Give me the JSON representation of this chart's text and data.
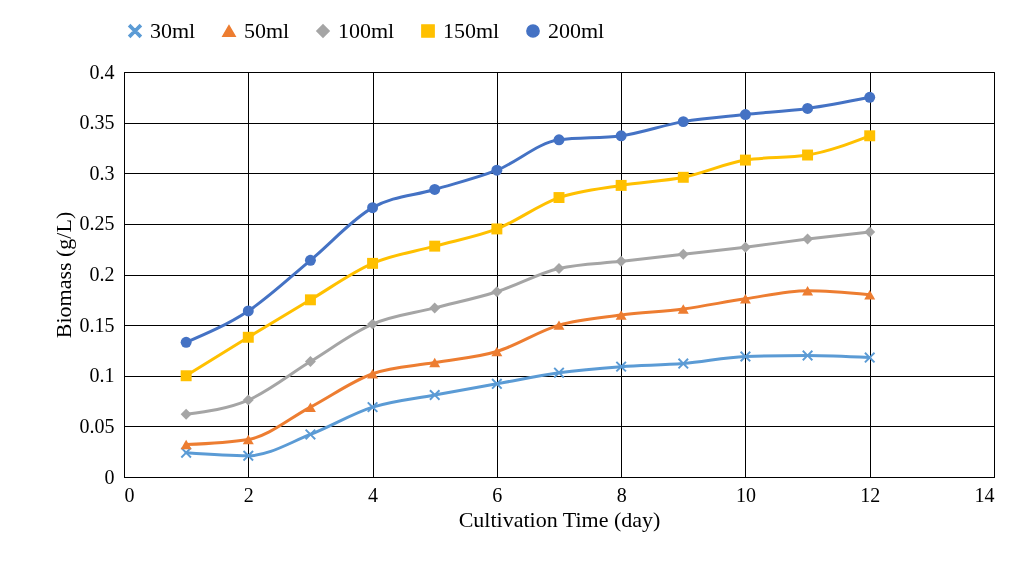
{
  "chart_data": {
    "type": "line",
    "xlabel": "Cultivation Time (day)",
    "ylabel": "Biomass (g/L)",
    "x": [
      1,
      2,
      3,
      4,
      5,
      6,
      7,
      8,
      9,
      10,
      11,
      12
    ],
    "xlim": [
      0,
      14
    ],
    "xticks": [
      0,
      2,
      4,
      6,
      8,
      10,
      12,
      14
    ],
    "ylim": [
      0,
      0.4
    ],
    "yticks": [
      0,
      0.05,
      0.1,
      0.15,
      0.2,
      0.25,
      0.3,
      0.35,
      0.4
    ],
    "grid": true,
    "legend": "top",
    "series": [
      {
        "name": "30ml",
        "color": "#5b9bd5",
        "marker": "cross",
        "values": [
          0.024,
          0.021,
          0.042,
          0.069,
          0.081,
          0.092,
          0.103,
          0.109,
          0.112,
          0.119,
          0.12,
          0.118
        ]
      },
      {
        "name": "50ml",
        "color": "#ed7d31",
        "marker": "triangle",
        "values": [
          0.032,
          0.037,
          0.069,
          0.102,
          0.113,
          0.124,
          0.15,
          0.16,
          0.166,
          0.176,
          0.184,
          0.18
        ]
      },
      {
        "name": "100ml",
        "color": "#a5a5a5",
        "marker": "diamond",
        "values": [
          0.062,
          0.076,
          0.114,
          0.151,
          0.167,
          0.183,
          0.206,
          0.213,
          0.22,
          0.227,
          0.235,
          0.242
        ]
      },
      {
        "name": "150ml",
        "color": "#ffc000",
        "marker": "square",
        "values": [
          0.1,
          0.138,
          0.175,
          0.211,
          0.228,
          0.245,
          0.276,
          0.288,
          0.296,
          0.313,
          0.318,
          0.337
        ]
      },
      {
        "name": "200ml",
        "color": "#4472c4",
        "marker": "circle",
        "values": [
          0.133,
          0.164,
          0.214,
          0.266,
          0.284,
          0.303,
          0.333,
          0.337,
          0.351,
          0.358,
          0.364,
          0.375
        ]
      }
    ]
  }
}
